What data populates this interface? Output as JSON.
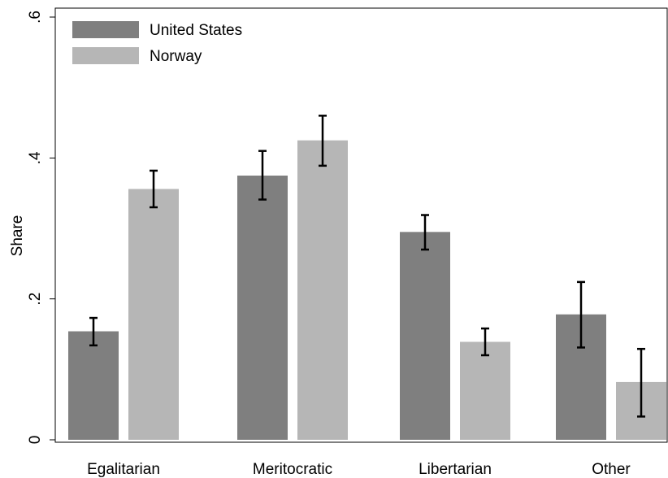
{
  "chart_data": {
    "type": "bar",
    "title": "",
    "xlabel": "",
    "ylabel": "Share",
    "ylim": [
      0,
      0.6
    ],
    "yticks": [
      0,
      0.2,
      0.4,
      0.6
    ],
    "ytick_labels": [
      "0",
      ".2",
      ".4",
      ".6"
    ],
    "grid": false,
    "legend_position": "top-left",
    "categories": [
      "Egalitarian",
      "Meritocratic",
      "Libertarian",
      "Other"
    ],
    "series": [
      {
        "name": "United States",
        "color": "#7f7f7f",
        "values": [
          0.154,
          0.375,
          0.295,
          0.178
        ],
        "ci_low": [
          0.134,
          0.341,
          0.27,
          0.131
        ],
        "ci_high": [
          0.173,
          0.41,
          0.319,
          0.224
        ]
      },
      {
        "name": "Norway",
        "color": "#b6b6b6",
        "values": [
          0.356,
          0.425,
          0.139,
          0.082
        ],
        "ci_low": [
          0.33,
          0.389,
          0.12,
          0.033
        ],
        "ci_high": [
          0.382,
          0.46,
          0.158,
          0.129
        ]
      }
    ]
  }
}
